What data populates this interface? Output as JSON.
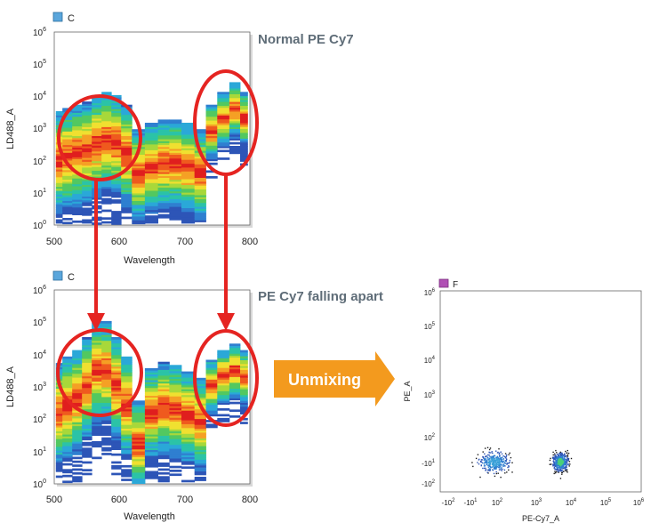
{
  "panels": [
    {
      "id": "top",
      "gate_label": "C",
      "gate_color": "#5aa6dc",
      "title": "Normal PE Cy7",
      "xlabel": "Wavelength",
      "ylabel": "LD488_A",
      "x_ticks": [
        "500",
        "600",
        "700",
        "800"
      ],
      "y_ticks": [
        [
          "10",
          "0"
        ],
        [
          "10",
          "1"
        ],
        [
          "10",
          "2"
        ],
        [
          "10",
          "3"
        ],
        [
          "10",
          "4"
        ],
        [
          "10",
          "5"
        ],
        [
          "10",
          "6"
        ]
      ]
    },
    {
      "id": "bottom",
      "gate_label": "C",
      "gate_color": "#5aa6dc",
      "title": "PE Cy7 falling apart",
      "xlabel": "Wavelength",
      "ylabel": "LD488_A",
      "x_ticks": [
        "500",
        "600",
        "700",
        "800"
      ],
      "y_ticks": [
        [
          "10",
          "0"
        ],
        [
          "10",
          "1"
        ],
        [
          "10",
          "2"
        ],
        [
          "10",
          "3"
        ],
        [
          "10",
          "4"
        ],
        [
          "10",
          "5"
        ],
        [
          "10",
          "6"
        ]
      ]
    },
    {
      "id": "scatter",
      "gate_label": "F",
      "gate_color": "#b04fb4",
      "xlabel": "PE-Cy7_A",
      "ylabel": "PE_A",
      "x_ticks": [
        [
          "-10",
          "2"
        ],
        [
          "-10",
          "1"
        ],
        [
          "10",
          "2"
        ],
        [
          "10",
          "3"
        ],
        [
          "10",
          "4"
        ],
        [
          "10",
          "5"
        ],
        [
          "10",
          "6"
        ]
      ],
      "y_ticks": [
        [
          "-10",
          "2"
        ],
        [
          "-10",
          "1"
        ],
        [
          "10",
          "2"
        ],
        [
          "10",
          "3"
        ],
        [
          "10",
          "4"
        ],
        [
          "10",
          "5"
        ],
        [
          "10",
          "6"
        ]
      ]
    }
  ],
  "arrow_label": "Unmixing",
  "colors": {
    "highlight": "#e52421",
    "arrow": "#f39a1e",
    "title": "#5f6d78"
  },
  "chart_data": [
    {
      "type": "heatmap",
      "panel": "top",
      "title": "Normal PE Cy7",
      "xlabel": "Wavelength",
      "ylabel": "LD488_A",
      "xlim": [
        500,
        800
      ],
      "ylim_log10": [
        0,
        6
      ],
      "y_scale": "log",
      "grid": false,
      "spectrum_median_log10": [
        {
          "x": 505,
          "y": 2.0
        },
        {
          "x": 520,
          "y": 2.1
        },
        {
          "x": 535,
          "y": 2.2
        },
        {
          "x": 550,
          "y": 2.3
        },
        {
          "x": 565,
          "y": 2.5
        },
        {
          "x": 580,
          "y": 2.6
        },
        {
          "x": 595,
          "y": 2.5
        },
        {
          "x": 610,
          "y": 2.2
        },
        {
          "x": 628,
          "y": 1.6
        },
        {
          "x": 650,
          "y": 1.8
        },
        {
          "x": 668,
          "y": 1.9
        },
        {
          "x": 685,
          "y": 1.9
        },
        {
          "x": 705,
          "y": 1.8
        },
        {
          "x": 725,
          "y": 1.6
        },
        {
          "x": 740,
          "y": 2.9
        },
        {
          "x": 760,
          "y": 3.3
        },
        {
          "x": 777,
          "y": 3.6
        },
        {
          "x": 793,
          "y": 3.3
        }
      ],
      "highlighted_regions": [
        {
          "x_range": [
            512,
            622
          ],
          "y_log10_range": [
            1.5,
            3.7
          ]
        },
        {
          "x_range": [
            720,
            800
          ],
          "y_log10_range": [
            2.0,
            4.5
          ]
        }
      ]
    },
    {
      "type": "heatmap",
      "panel": "bottom",
      "title": "PE Cy7 falling apart",
      "xlabel": "Wavelength",
      "ylabel": "LD488_A",
      "xlim": [
        500,
        800
      ],
      "ylim_log10": [
        0,
        6
      ],
      "y_scale": "log",
      "grid": false,
      "spectrum_median_log10": [
        {
          "x": 505,
          "y": 2.2
        },
        {
          "x": 520,
          "y": 2.4
        },
        {
          "x": 535,
          "y": 2.6
        },
        {
          "x": 550,
          "y": 3.0
        },
        {
          "x": 565,
          "y": 3.5
        },
        {
          "x": 580,
          "y": 3.5
        },
        {
          "x": 595,
          "y": 3.0
        },
        {
          "x": 610,
          "y": 2.4
        },
        {
          "x": 628,
          "y": 1.2
        },
        {
          "x": 650,
          "y": 2.2
        },
        {
          "x": 668,
          "y": 2.4
        },
        {
          "x": 685,
          "y": 2.3
        },
        {
          "x": 705,
          "y": 2.1
        },
        {
          "x": 725,
          "y": 1.9
        },
        {
          "x": 740,
          "y": 3.0
        },
        {
          "x": 760,
          "y": 3.3
        },
        {
          "x": 777,
          "y": 3.5
        },
        {
          "x": 793,
          "y": 3.3
        }
      ],
      "highlighted_regions": [
        {
          "x_range": [
            510,
            640
          ],
          "y_log10_range": [
            2.2,
            4.4
          ]
        },
        {
          "x_range": [
            720,
            800
          ],
          "y_log10_range": [
            2.1,
            4.8
          ]
        }
      ]
    },
    {
      "type": "scatter",
      "panel": "scatter",
      "xlabel": "PE-Cy7_A",
      "ylabel": "PE_A",
      "x_scale": "biexponential",
      "y_scale": "biexponential",
      "grid": false,
      "populations": [
        {
          "x_center": 80,
          "y_center": -10,
          "density": "low"
        },
        {
          "x_center": 5000,
          "y_center": -10,
          "density": "high"
        }
      ]
    }
  ]
}
